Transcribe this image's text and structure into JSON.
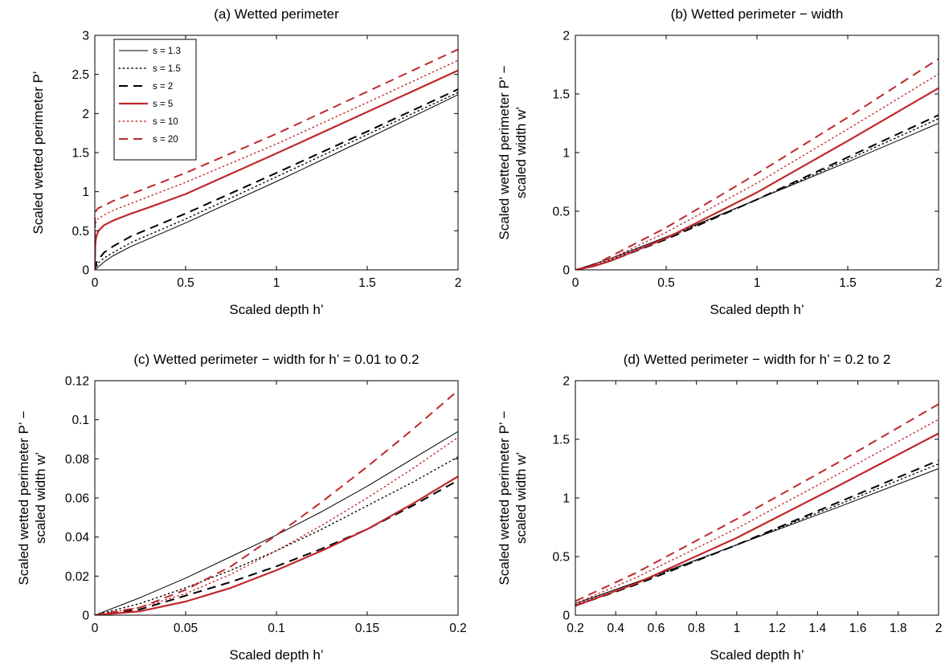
{
  "colors": {
    "black": "#000000",
    "red": "#c0282d"
  },
  "legend": {
    "panel": 0,
    "entries": [
      {
        "label": "s = 1.3",
        "color": "#000000",
        "style": "thin"
      },
      {
        "label": "s = 1.5",
        "color": "#000000",
        "style": "dotted"
      },
      {
        "label": "s = 2",
        "color": "#000000",
        "style": "dashed"
      },
      {
        "label": "s = 5",
        "color": "#c0282d",
        "style": "solid"
      },
      {
        "label": "s = 10",
        "color": "#c0282d",
        "style": "dotted"
      },
      {
        "label": "s = 20",
        "color": "#c0282d",
        "style": "dashed"
      }
    ]
  },
  "chart_data": [
    {
      "type": "line",
      "title": "(a) Wetted perimeter",
      "xlabel": "Scaled depth h’",
      "ylabel": [
        "Scaled wetted perimeter P’"
      ],
      "xlim": [
        0,
        2
      ],
      "ylim": [
        0,
        3
      ],
      "xticks": [
        0,
        0.5,
        1,
        1.5,
        2
      ],
      "xticklabels": [
        "0",
        "0.5",
        "1",
        "1.5",
        "2"
      ],
      "yticks": [
        0,
        0.5,
        1,
        1.5,
        2,
        2.5,
        3
      ],
      "yticklabels": [
        "0",
        "0.5",
        "1",
        "1.5",
        "2",
        "2.5",
        "3"
      ],
      "grid": false,
      "series": [
        {
          "name": "s = 1.3",
          "color": "#000000",
          "style": "thin",
          "x": [
            0,
            0.05,
            0.1,
            0.2,
            0.5,
            1,
            1.5,
            2
          ],
          "y": [
            0,
            0.1,
            0.18,
            0.3,
            0.6,
            1.13,
            1.68,
            2.24
          ]
        },
        {
          "name": "s = 1.5",
          "color": "#000000",
          "style": "dotted",
          "x": [
            0,
            0.02,
            0.05,
            0.1,
            0.2,
            0.5,
            1,
            1.5,
            2
          ],
          "y": [
            0,
            0.09,
            0.15,
            0.22,
            0.35,
            0.65,
            1.19,
            1.73,
            2.27
          ]
        },
        {
          "name": "s = 2",
          "color": "#000000",
          "style": "dashed",
          "x": [
            0,
            0.01,
            0.05,
            0.1,
            0.2,
            0.5,
            1,
            1.5,
            2
          ],
          "y": [
            0,
            0.1,
            0.22,
            0.3,
            0.43,
            0.72,
            1.24,
            1.77,
            2.31
          ]
        },
        {
          "name": "s = 5",
          "color": "#c0282d",
          "style": "solid",
          "x": [
            0,
            0.002,
            0.005,
            0.01,
            0.02,
            0.05,
            0.1,
            0.2,
            0.3,
            0.5,
            1,
            1.5,
            2
          ],
          "y": [
            0,
            0.3,
            0.38,
            0.44,
            0.5,
            0.57,
            0.63,
            0.72,
            0.8,
            0.97,
            1.49,
            2.02,
            2.55
          ]
        },
        {
          "name": "s = 10",
          "color": "#c0282d",
          "style": "dotted",
          "x": [
            0,
            0.001,
            0.005,
            0.01,
            0.02,
            0.05,
            0.1,
            0.2,
            0.5,
            1,
            1.5,
            2
          ],
          "y": [
            0,
            0.5,
            0.6,
            0.63,
            0.66,
            0.7,
            0.76,
            0.85,
            1.12,
            1.61,
            2.14,
            2.68
          ]
        },
        {
          "name": "s = 20",
          "color": "#c0282d",
          "style": "dashed",
          "x": [
            0,
            0.001,
            0.005,
            0.01,
            0.02,
            0.05,
            0.1,
            0.2,
            0.5,
            1,
            1.5,
            2
          ],
          "y": [
            0,
            0.65,
            0.74,
            0.77,
            0.79,
            0.82,
            0.88,
            0.97,
            1.24,
            1.74,
            2.28,
            2.82
          ]
        }
      ]
    },
    {
      "type": "line",
      "title": "(b) Wetted perimeter − width",
      "xlabel": "Scaled depth h’",
      "ylabel": [
        "Scaled wetted perimeter P’ −",
        "scaled width w’"
      ],
      "xlim": [
        0,
        2
      ],
      "ylim": [
        0,
        2
      ],
      "xticks": [
        0,
        0.5,
        1,
        1.5,
        2
      ],
      "xticklabels": [
        "0",
        "0.5",
        "1",
        "1.5",
        "2"
      ],
      "yticks": [
        0,
        0.5,
        1,
        1.5,
        2
      ],
      "yticklabels": [
        "0",
        "0.5",
        "1",
        "1.5",
        "2"
      ],
      "grid": false,
      "series": [
        {
          "name": "s = 1.3",
          "color": "#000000",
          "style": "thin",
          "x": [
            0,
            0.1,
            0.2,
            0.5,
            1,
            1.5,
            2
          ],
          "y": [
            0,
            0.05,
            0.1,
            0.28,
            0.6,
            0.92,
            1.25
          ]
        },
        {
          "name": "s = 1.5",
          "color": "#000000",
          "style": "dotted",
          "x": [
            0,
            0.1,
            0.2,
            0.5,
            1,
            1.5,
            2
          ],
          "y": [
            0,
            0.04,
            0.09,
            0.27,
            0.6,
            0.94,
            1.29
          ]
        },
        {
          "name": "s = 2",
          "color": "#000000",
          "style": "dashed",
          "x": [
            0,
            0.1,
            0.2,
            0.5,
            1,
            1.5,
            2
          ],
          "y": [
            0,
            0.03,
            0.08,
            0.26,
            0.6,
            0.96,
            1.32
          ]
        },
        {
          "name": "s = 5",
          "color": "#c0282d",
          "style": "solid",
          "x": [
            0,
            0.1,
            0.2,
            0.5,
            1,
            1.5,
            2
          ],
          "y": [
            0,
            0.03,
            0.08,
            0.27,
            0.66,
            1.1,
            1.55
          ]
        },
        {
          "name": "s = 10",
          "color": "#c0282d",
          "style": "dotted",
          "x": [
            0,
            0.1,
            0.2,
            0.5,
            1,
            1.5,
            2
          ],
          "y": [
            0,
            0.04,
            0.1,
            0.32,
            0.74,
            1.2,
            1.67
          ]
        },
        {
          "name": "s = 20",
          "color": "#c0282d",
          "style": "dashed",
          "x": [
            0,
            0.1,
            0.2,
            0.5,
            1,
            1.5,
            2
          ],
          "y": [
            0,
            0.04,
            0.12,
            0.36,
            0.82,
            1.3,
            1.8
          ]
        }
      ]
    },
    {
      "type": "line",
      "title": "(c) Wetted perimeter − width for h’ = 0.01 to 0.2",
      "xlabel": "Scaled depth h’",
      "ylabel": [
        "Scaled wetted perimeter P’ −",
        "scaled width w’"
      ],
      "xlim": [
        0,
        0.2
      ],
      "ylim": [
        0,
        0.12
      ],
      "xticks": [
        0,
        0.05,
        0.1,
        0.15,
        0.2
      ],
      "xticklabels": [
        "0",
        "0.05",
        "0.1",
        "0.15",
        "0.2"
      ],
      "yticks": [
        0,
        0.02,
        0.04,
        0.06,
        0.08,
        0.1,
        0.12
      ],
      "yticklabels": [
        "0",
        "0.02",
        "0.04",
        "0.06",
        "0.08",
        "0.1",
        "0.12"
      ],
      "grid": false,
      "series": [
        {
          "name": "s = 1.3",
          "color": "#000000",
          "style": "thin",
          "x": [
            0,
            0.025,
            0.05,
            0.075,
            0.1,
            0.125,
            0.15,
            0.175,
            0.2
          ],
          "y": [
            0,
            0.009,
            0.019,
            0.03,
            0.041,
            0.053,
            0.066,
            0.08,
            0.094
          ]
        },
        {
          "name": "s = 1.5",
          "color": "#000000",
          "style": "dotted",
          "x": [
            0,
            0.025,
            0.05,
            0.075,
            0.1,
            0.125,
            0.15,
            0.175,
            0.2
          ],
          "y": [
            0,
            0.006,
            0.014,
            0.023,
            0.033,
            0.044,
            0.056,
            0.068,
            0.081
          ]
        },
        {
          "name": "s = 2",
          "color": "#000000",
          "style": "dashed",
          "x": [
            0,
            0.025,
            0.05,
            0.075,
            0.1,
            0.125,
            0.15,
            0.175,
            0.2
          ],
          "y": [
            0,
            0.003,
            0.01,
            0.017,
            0.025,
            0.034,
            0.044,
            0.056,
            0.069
          ]
        },
        {
          "name": "s = 5",
          "color": "#c0282d",
          "style": "solid",
          "x": [
            0,
            0.025,
            0.05,
            0.075,
            0.1,
            0.125,
            0.15,
            0.175,
            0.2
          ],
          "y": [
            0,
            0.002,
            0.007,
            0.014,
            0.023,
            0.033,
            0.044,
            0.057,
            0.071
          ]
        },
        {
          "name": "s = 10",
          "color": "#c0282d",
          "style": "dotted",
          "x": [
            0,
            0.025,
            0.05,
            0.075,
            0.1,
            0.125,
            0.15,
            0.175,
            0.2
          ],
          "y": [
            0,
            0.004,
            0.011,
            0.021,
            0.033,
            0.046,
            0.06,
            0.075,
            0.091
          ]
        },
        {
          "name": "s = 20",
          "color": "#c0282d",
          "style": "dashed",
          "x": [
            0,
            0.025,
            0.05,
            0.075,
            0.1,
            0.125,
            0.15,
            0.175,
            0.2
          ],
          "y": [
            0,
            0.004,
            0.013,
            0.025,
            0.041,
            0.058,
            0.076,
            0.095,
            0.115
          ]
        }
      ]
    },
    {
      "type": "line",
      "title": "(d) Wetted perimeter − width for h’ = 0.2 to 2",
      "xlabel": "Scaled depth h’",
      "ylabel": [
        "Scaled wetted perimeter P’ −",
        "scaled width w’"
      ],
      "xlim": [
        0.2,
        2
      ],
      "ylim": [
        0,
        2
      ],
      "xticks": [
        0.2,
        0.4,
        0.6,
        0.8,
        1,
        1.2,
        1.4,
        1.6,
        1.8,
        2
      ],
      "xticklabels": [
        "0.2",
        "0.4",
        "0.6",
        "0.8",
        "1",
        "1.2",
        "1.4",
        "1.6",
        "1.8",
        "2"
      ],
      "yticks": [
        0,
        0.5,
        1,
        1.5,
        2
      ],
      "yticklabels": [
        "0",
        "0.5",
        "1",
        "1.5",
        "2"
      ],
      "grid": false,
      "series": [
        {
          "name": "s = 1.3",
          "color": "#000000",
          "style": "thin",
          "x": [
            0.2,
            0.5,
            1,
            1.5,
            2
          ],
          "y": [
            0.1,
            0.28,
            0.6,
            0.92,
            1.25
          ]
        },
        {
          "name": "s = 1.5",
          "color": "#000000",
          "style": "dotted",
          "x": [
            0.2,
            0.5,
            1,
            1.5,
            2
          ],
          "y": [
            0.09,
            0.27,
            0.6,
            0.94,
            1.29
          ]
        },
        {
          "name": "s = 2",
          "color": "#000000",
          "style": "dashed",
          "x": [
            0.2,
            0.5,
            1,
            1.5,
            2
          ],
          "y": [
            0.08,
            0.26,
            0.6,
            0.96,
            1.32
          ]
        },
        {
          "name": "s = 5",
          "color": "#c0282d",
          "style": "solid",
          "x": [
            0.2,
            0.5,
            1,
            1.5,
            2
          ],
          "y": [
            0.08,
            0.27,
            0.66,
            1.1,
            1.55
          ]
        },
        {
          "name": "s = 10",
          "color": "#c0282d",
          "style": "dotted",
          "x": [
            0.2,
            0.5,
            1,
            1.5,
            2
          ],
          "y": [
            0.1,
            0.32,
            0.74,
            1.2,
            1.67
          ]
        },
        {
          "name": "s = 20",
          "color": "#c0282d",
          "style": "dashed",
          "x": [
            0.2,
            0.5,
            1,
            1.5,
            2
          ],
          "y": [
            0.12,
            0.36,
            0.82,
            1.3,
            1.8
          ]
        }
      ]
    }
  ]
}
